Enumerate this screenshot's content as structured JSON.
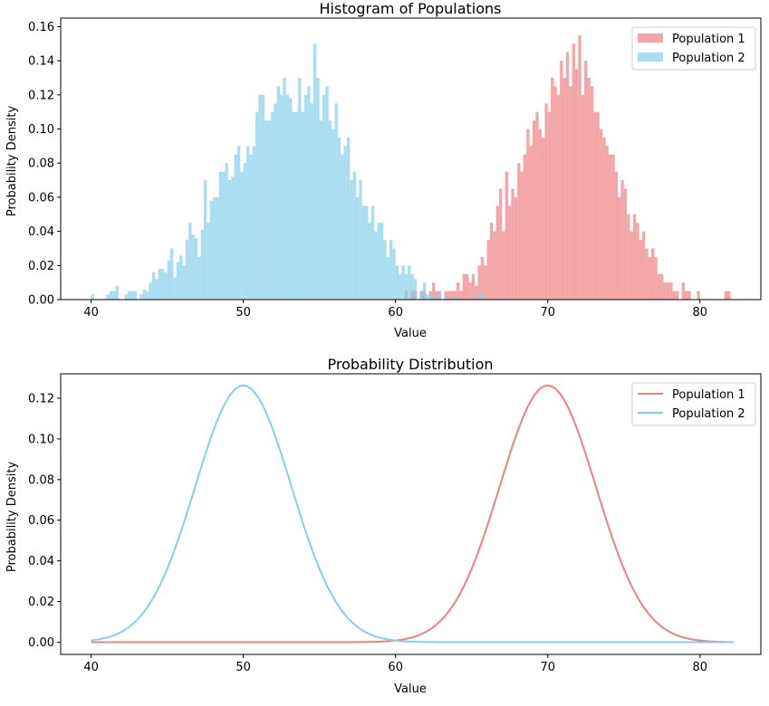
{
  "chart_data": [
    {
      "type": "bar",
      "subtype": "histogram",
      "title": "Histogram of Populations",
      "xlabel": "Value",
      "ylabel": "Probability Density",
      "xlim": [
        38,
        84
      ],
      "ylim": [
        0,
        0.165
      ],
      "xticks": [
        40,
        50,
        60,
        70,
        80
      ],
      "yticks": [
        0.0,
        0.02,
        0.04,
        0.06,
        0.08,
        0.1,
        0.12,
        0.14,
        0.16
      ],
      "ytick_labels": [
        "0.00",
        "0.02",
        "0.04",
        "0.06",
        "0.08",
        "0.10",
        "0.12",
        "0.14",
        "0.16"
      ],
      "legend": {
        "position": "top-right"
      },
      "series": [
        {
          "name": "Population 1",
          "color": "#f08080",
          "opacity": 0.7,
          "x_start": 60.6,
          "bin_width": 0.2,
          "values": [
            0.005,
            0.0,
            0.005,
            0.005,
            0.0,
            0.005,
            0.005,
            0.0,
            0.005,
            0.01,
            0.005,
            0.005,
            0.0,
            0.005,
            0.005,
            0.005,
            0.005,
            0.01,
            0.005,
            0.015,
            0.015,
            0.01,
            0.015,
            0.008,
            0.02,
            0.025,
            0.02,
            0.035,
            0.045,
            0.04,
            0.055,
            0.065,
            0.04,
            0.075,
            0.055,
            0.065,
            0.06,
            0.08,
            0.075,
            0.085,
            0.1,
            0.09,
            0.105,
            0.11,
            0.1,
            0.095,
            0.115,
            0.11,
            0.13,
            0.125,
            0.12,
            0.14,
            0.13,
            0.145,
            0.125,
            0.15,
            0.135,
            0.155,
            0.12,
            0.14,
            0.13,
            0.125,
            0.11,
            0.11,
            0.1,
            0.095,
            0.09,
            0.085,
            0.085,
            0.075,
            0.06,
            0.07,
            0.065,
            0.05,
            0.04,
            0.05,
            0.045,
            0.035,
            0.04,
            0.03,
            0.025,
            0.03,
            0.025,
            0.015,
            0.015,
            0.01,
            0.01,
            0.01,
            0.005,
            0.005,
            0.0,
            0.01,
            0.005,
            0.005,
            0.0,
            0.0,
            0.005,
            0.0,
            0.0,
            0.0,
            0.0,
            0.0,
            0.0,
            0.0,
            0.0,
            0.005,
            0.005,
            0.0,
            0.0,
            0.0,
            0.0,
            0.0,
            0.0,
            0.0,
            0.0,
            0.0,
            0.0,
            0.0,
            0.0,
            0.0,
            0.0,
            0.0,
            0.0,
            0.0,
            0.0,
            0.0,
            0.0,
            0.0,
            0.0,
            0.003
          ]
        },
        {
          "name": "Population 2",
          "color": "#87ceeb",
          "opacity": 0.7,
          "x_start": 40.0,
          "bin_width": 0.2,
          "values": [
            0.003,
            0.0,
            0.0,
            0.0,
            0.0,
            0.003,
            0.005,
            0.005,
            0.008,
            0.0,
            0.0,
            0.003,
            0.005,
            0.005,
            0.005,
            0.0,
            0.003,
            0.006,
            0.005,
            0.01,
            0.016,
            0.012,
            0.018,
            0.018,
            0.016,
            0.023,
            0.03,
            0.013,
            0.022,
            0.026,
            0.02,
            0.035,
            0.045,
            0.038,
            0.036,
            0.025,
            0.041,
            0.07,
            0.045,
            0.058,
            0.06,
            0.06,
            0.075,
            0.075,
            0.08,
            0.07,
            0.072,
            0.085,
            0.09,
            0.075,
            0.08,
            0.09,
            0.085,
            0.09,
            0.11,
            0.12,
            0.12,
            0.105,
            0.105,
            0.11,
            0.115,
            0.125,
            0.12,
            0.13,
            0.12,
            0.118,
            0.11,
            0.11,
            0.13,
            0.11,
            0.12,
            0.125,
            0.115,
            0.15,
            0.13,
            0.105,
            0.12,
            0.125,
            0.105,
            0.1,
            0.115,
            0.095,
            0.085,
            0.09,
            0.095,
            0.07,
            0.075,
            0.06,
            0.07,
            0.055,
            0.055,
            0.045,
            0.055,
            0.04,
            0.045,
            0.045,
            0.035,
            0.025,
            0.035,
            0.03,
            0.02,
            0.015,
            0.02,
            0.015,
            0.02,
            0.015,
            0.012,
            0.0,
            0.005,
            0.01,
            0.003,
            0.003,
            0.003,
            0.0,
            0.005,
            0.0,
            0.003,
            0.0,
            0.0,
            0.003,
            0.0,
            0.0,
            0.0,
            0.0,
            0.0,
            0.003,
            0.0,
            0.003,
            0.004
          ]
        }
      ]
    },
    {
      "type": "line",
      "title": "Probability Distribution",
      "xlabel": "Value",
      "ylabel": "Probability Density",
      "xlim": [
        38,
        84
      ],
      "ylim": [
        -0.006,
        0.132
      ],
      "xticks": [
        40,
        50,
        60,
        70,
        80
      ],
      "yticks": [
        0.0,
        0.02,
        0.04,
        0.06,
        0.08,
        0.1,
        0.12
      ],
      "ytick_labels": [
        "0.00",
        "0.02",
        "0.04",
        "0.06",
        "0.08",
        "0.10",
        "0.12"
      ],
      "x_range": [
        40,
        82.2
      ],
      "legend": {
        "position": "top-right"
      },
      "series": [
        {
          "name": "Population 1",
          "color": "#f08080",
          "mean": 70,
          "std": 3.16
        },
        {
          "name": "Population 2",
          "color": "#87ceeb",
          "mean": 50,
          "std": 3.16
        }
      ]
    }
  ]
}
